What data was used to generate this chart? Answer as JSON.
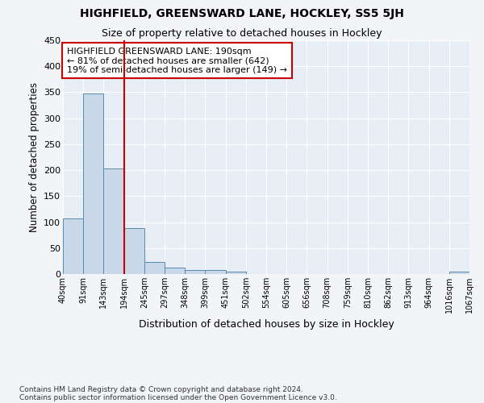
{
  "title": "HIGHFIELD, GREENSWARD LANE, HOCKLEY, SS5 5JH",
  "subtitle": "Size of property relative to detached houses in Hockley",
  "xlabel": "Distribution of detached houses by size in Hockley",
  "ylabel": "Number of detached properties",
  "footnote1": "Contains HM Land Registry data © Crown copyright and database right 2024.",
  "footnote2": "Contains public sector information licensed under the Open Government Licence v3.0.",
  "annotation_line1": "HIGHFIELD GREENSWARD LANE: 190sqm",
  "annotation_line2": "← 81% of detached houses are smaller (642)",
  "annotation_line3": "19% of semi-detached houses are larger (149) →",
  "bin_labels": [
    "40sqm",
    "91sqm",
    "143sqm",
    "194sqm",
    "245sqm",
    "297sqm",
    "348sqm",
    "399sqm",
    "451sqm",
    "502sqm",
    "554sqm",
    "605sqm",
    "656sqm",
    "708sqm",
    "759sqm",
    "810sqm",
    "862sqm",
    "913sqm",
    "964sqm",
    "1016sqm",
    "1067sqm"
  ],
  "bar_values": [
    107,
    347,
    203,
    89,
    23,
    13,
    8,
    7,
    4,
    0,
    0,
    0,
    0,
    0,
    0,
    0,
    0,
    0,
    0,
    4
  ],
  "bar_color": "#c8d8e8",
  "bar_edge_color": "#5a8ab0",
  "vline_x_index": 3,
  "vline_color": "#cc0000",
  "ylim": [
    0,
    450
  ],
  "yticks": [
    0,
    50,
    100,
    150,
    200,
    250,
    300,
    350,
    400,
    450
  ],
  "annotation_box_color": "#cc0000",
  "background_color": "#f2f4f8",
  "plot_bg_color": "#e8eef5"
}
